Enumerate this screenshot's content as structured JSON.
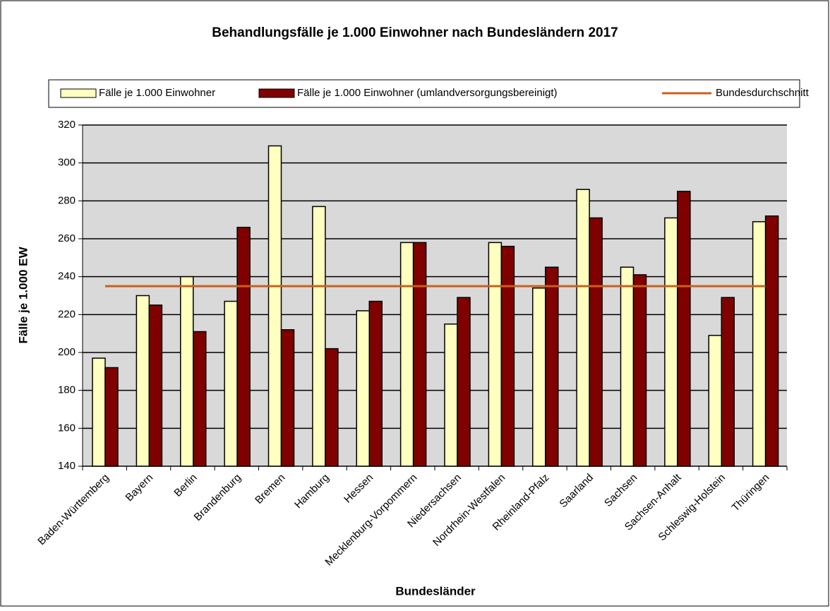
{
  "chart_data": {
    "type": "bar",
    "title": "Behandlungsfälle je 1.000 Einwohner nach Bundesländern 2017",
    "x_label": "Bundesländer",
    "y_label": "Fälle je 1.000  EW",
    "categories": [
      "Baden-Württemberg",
      "Bayern",
      "Berlin",
      "Brandenburg",
      "Bremen",
      "Hamburg",
      "Hessen",
      "Mecklenburg-Vorpommern",
      "Niedersachsen",
      "Nordrhein-Westfalen",
      "Rheinland-Pfalz",
      "Saarland",
      "Sachsen",
      "Sachsen-Anhalt",
      "Schleswig-Holstein",
      "Thüringen"
    ],
    "series": [
      {
        "name": "Fälle je 1.000 Einwohner",
        "color": "#ffffc0",
        "type": "bar",
        "values": [
          197,
          230,
          240,
          227,
          309,
          277,
          222,
          258,
          215,
          258,
          234,
          286,
          245,
          271,
          209,
          269
        ]
      },
      {
        "name": "Fälle je 1.000 Einwohner (umlandversorgungsbereinigt)",
        "color": "#800000",
        "type": "bar",
        "values": [
          192,
          225,
          211,
          266,
          212,
          202,
          227,
          258,
          229,
          256,
          245,
          271,
          241,
          285,
          229,
          272
        ]
      },
      {
        "name": "Bundesdurchschnitt",
        "color": "#c8601e",
        "type": "line",
        "values": [
          235,
          235,
          235,
          235,
          235,
          235,
          235,
          235,
          235,
          235,
          235,
          235,
          235,
          235,
          235,
          235
        ]
      }
    ],
    "ylim": [
      140,
      320
    ],
    "yticks": [
      140,
      160,
      180,
      200,
      220,
      240,
      260,
      280,
      300,
      320
    ],
    "grid": true
  }
}
